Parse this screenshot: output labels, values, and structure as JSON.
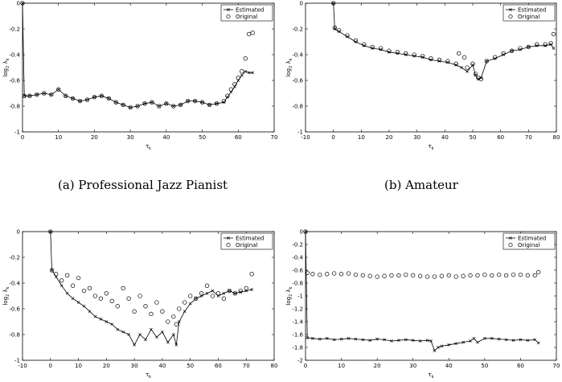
{
  "captions": {
    "a": "(a) Professional Jazz Pianist",
    "b": "(b) Amateur"
  },
  "chart_data": [
    {
      "type": "line",
      "xlabel": "τ_k",
      "ylabel": "log_2 λ_k",
      "xlim": [
        0,
        70
      ],
      "ylim": [
        -1,
        0
      ],
      "xticks": [
        0,
        10,
        20,
        30,
        40,
        50,
        60,
        70
      ],
      "yticks": [
        0,
        -0.2,
        -0.4,
        -0.6,
        -0.8,
        -1
      ],
      "legend": "top-right",
      "series": [
        {
          "name": "Estimated",
          "style": "line-x",
          "x": [
            0,
            0.5,
            2,
            4,
            6,
            8,
            10,
            12,
            14,
            16,
            18,
            20,
            22,
            24,
            26,
            28,
            30,
            32,
            34,
            36,
            38,
            40,
            42,
            44,
            46,
            48,
            50,
            52,
            54,
            56,
            57,
            58,
            59,
            60,
            61,
            62,
            63,
            64
          ],
          "y": [
            0,
            -0.72,
            -0.72,
            -0.71,
            -0.7,
            -0.71,
            -0.67,
            -0.72,
            -0.74,
            -0.76,
            -0.75,
            -0.73,
            -0.72,
            -0.74,
            -0.77,
            -0.79,
            -0.81,
            -0.8,
            -0.78,
            -0.77,
            -0.8,
            -0.78,
            -0.8,
            -0.79,
            -0.76,
            -0.76,
            -0.77,
            -0.79,
            -0.78,
            -0.77,
            -0.73,
            -0.69,
            -0.65,
            -0.6,
            -0.56,
            -0.53,
            -0.54,
            -0.54
          ]
        },
        {
          "name": "Original",
          "style": "circle",
          "x": [
            0,
            0.5,
            2,
            4,
            6,
            8,
            10,
            12,
            14,
            16,
            18,
            20,
            22,
            24,
            26,
            28,
            30,
            32,
            34,
            36,
            38,
            40,
            42,
            44,
            46,
            48,
            50,
            52,
            54,
            56,
            57,
            58,
            59,
            60,
            61,
            62,
            63,
            64
          ],
          "y": [
            0,
            -0.72,
            -0.72,
            -0.71,
            -0.7,
            -0.71,
            -0.67,
            -0.72,
            -0.74,
            -0.76,
            -0.75,
            -0.73,
            -0.72,
            -0.74,
            -0.77,
            -0.79,
            -0.81,
            -0.8,
            -0.78,
            -0.77,
            -0.8,
            -0.78,
            -0.8,
            -0.79,
            -0.76,
            -0.76,
            -0.77,
            -0.79,
            -0.78,
            -0.76,
            -0.72,
            -0.67,
            -0.63,
            -0.58,
            -0.53,
            -0.43,
            -0.24,
            -0.23
          ]
        }
      ]
    },
    {
      "type": "line",
      "xlabel": "τ_k",
      "ylabel": "log_2 λ_k",
      "xlim": [
        -10,
        80
      ],
      "ylim": [
        -1,
        0
      ],
      "xticks": [
        -10,
        0,
        10,
        20,
        30,
        40,
        50,
        60,
        70,
        80
      ],
      "yticks": [
        0,
        -0.2,
        -0.4,
        -0.6,
        -0.8,
        -1
      ],
      "legend": "top-right",
      "series": [
        {
          "name": "Estimated",
          "style": "line-x",
          "x": [
            0,
            0.5,
            2,
            5,
            8,
            11,
            14,
            17,
            20,
            23,
            26,
            29,
            32,
            35,
            38,
            41,
            44,
            46,
            48,
            50,
            51,
            52,
            53,
            55,
            58,
            61,
            64,
            67,
            70,
            73,
            76,
            78,
            79
          ],
          "y": [
            0,
            -0.2,
            -0.22,
            -0.26,
            -0.3,
            -0.33,
            -0.35,
            -0.36,
            -0.38,
            -0.39,
            -0.4,
            -0.41,
            -0.42,
            -0.44,
            -0.45,
            -0.46,
            -0.48,
            -0.5,
            -0.53,
            -0.48,
            -0.56,
            -0.59,
            -0.58,
            -0.45,
            -0.43,
            -0.4,
            -0.37,
            -0.36,
            -0.34,
            -0.33,
            -0.33,
            -0.32,
            -0.35
          ]
        },
        {
          "name": "Original",
          "style": "circle",
          "x": [
            0,
            0.5,
            2,
            5,
            8,
            11,
            14,
            17,
            20,
            23,
            26,
            29,
            32,
            35,
            38,
            41,
            44,
            45,
            47,
            48,
            50,
            51,
            52,
            53,
            55,
            58,
            61,
            64,
            67,
            70,
            73,
            76,
            78,
            79
          ],
          "y": [
            0,
            -0.19,
            -0.21,
            -0.25,
            -0.29,
            -0.32,
            -0.34,
            -0.35,
            -0.37,
            -0.38,
            -0.39,
            -0.4,
            -0.41,
            -0.43,
            -0.44,
            -0.45,
            -0.47,
            -0.39,
            -0.42,
            -0.5,
            -0.47,
            -0.55,
            -0.58,
            -0.59,
            -0.45,
            -0.42,
            -0.39,
            -0.37,
            -0.35,
            -0.34,
            -0.32,
            -0.32,
            -0.31,
            -0.24
          ]
        }
      ]
    },
    {
      "type": "line",
      "xlabel": "τ_k",
      "ylabel": "log_2 λ_k",
      "xlim": [
        -10,
        80
      ],
      "ylim": [
        -1,
        0
      ],
      "xticks": [
        -10,
        0,
        10,
        20,
        30,
        40,
        50,
        60,
        70,
        80
      ],
      "yticks": [
        0,
        -0.2,
        -0.4,
        -0.6,
        -0.8,
        -1
      ],
      "legend": "top-right",
      "series": [
        {
          "name": "Estimated",
          "style": "line-x",
          "x": [
            0,
            0.5,
            2,
            4,
            6,
            8,
            10,
            12,
            14,
            16,
            18,
            20,
            22,
            24,
            26,
            28,
            30,
            32,
            34,
            36,
            38,
            40,
            42,
            44,
            45,
            46,
            48,
            50,
            52,
            54,
            56,
            58,
            60,
            62,
            64,
            66,
            68,
            70,
            72
          ],
          "y": [
            0,
            -0.3,
            -0.35,
            -0.42,
            -0.48,
            -0.52,
            -0.55,
            -0.58,
            -0.62,
            -0.66,
            -0.68,
            -0.7,
            -0.72,
            -0.76,
            -0.78,
            -0.8,
            -0.88,
            -0.8,
            -0.84,
            -0.76,
            -0.82,
            -0.78,
            -0.86,
            -0.8,
            -0.88,
            -0.7,
            -0.62,
            -0.56,
            -0.52,
            -0.5,
            -0.48,
            -0.46,
            -0.5,
            -0.48,
            -0.46,
            -0.48,
            -0.47,
            -0.46,
            -0.45
          ]
        },
        {
          "name": "Original",
          "style": "circle",
          "x": [
            0,
            0.5,
            2,
            4,
            6,
            8,
            10,
            12,
            14,
            16,
            18,
            20,
            22,
            24,
            26,
            28,
            30,
            32,
            34,
            36,
            38,
            40,
            42,
            44,
            45,
            46,
            48,
            50,
            52,
            54,
            56,
            58,
            60,
            62,
            64,
            66,
            68,
            70,
            72
          ],
          "y": [
            0,
            -0.3,
            -0.33,
            -0.38,
            -0.34,
            -0.42,
            -0.36,
            -0.46,
            -0.44,
            -0.5,
            -0.52,
            -0.48,
            -0.54,
            -0.58,
            -0.44,
            -0.52,
            -0.62,
            -0.5,
            -0.58,
            -0.64,
            -0.55,
            -0.62,
            -0.7,
            -0.66,
            -0.72,
            -0.6,
            -0.55,
            -0.5,
            -0.52,
            -0.48,
            -0.42,
            -0.5,
            -0.48,
            -0.52,
            -0.46,
            -0.48,
            -0.46,
            -0.44,
            -0.33
          ]
        }
      ]
    },
    {
      "type": "line",
      "xlabel": "τ_k",
      "ylabel": "log_2 λ_k",
      "xlim": [
        0,
        70
      ],
      "ylim": [
        -2,
        0
      ],
      "xticks": [
        0,
        10,
        20,
        30,
        40,
        50,
        60,
        70
      ],
      "yticks": [
        0,
        -0.2,
        -0.4,
        -0.6,
        -0.8,
        -1,
        -1.2,
        -1.4,
        -1.6,
        -1.8,
        -2
      ],
      "legend": "top-right",
      "series": [
        {
          "name": "Estimated",
          "style": "line-x",
          "x": [
            0,
            0.5,
            2,
            4,
            6,
            8,
            10,
            12,
            14,
            16,
            18,
            20,
            22,
            24,
            26,
            28,
            30,
            32,
            34,
            35,
            36,
            37,
            38,
            40,
            42,
            44,
            46,
            47,
            48,
            50,
            52,
            54,
            56,
            58,
            60,
            62,
            64,
            65
          ],
          "y": [
            0,
            -1.65,
            -1.66,
            -1.67,
            -1.66,
            -1.68,
            -1.67,
            -1.66,
            -1.67,
            -1.68,
            -1.69,
            -1.67,
            -1.68,
            -1.7,
            -1.69,
            -1.68,
            -1.69,
            -1.7,
            -1.69,
            -1.7,
            -1.85,
            -1.8,
            -1.78,
            -1.76,
            -1.74,
            -1.72,
            -1.7,
            -1.66,
            -1.72,
            -1.66,
            -1.66,
            -1.67,
            -1.68,
            -1.69,
            -1.68,
            -1.69,
            -1.68,
            -1.73
          ]
        },
        {
          "name": "Original",
          "style": "circle",
          "x": [
            0,
            0.5,
            2,
            4,
            6,
            8,
            10,
            12,
            14,
            16,
            18,
            20,
            22,
            24,
            26,
            28,
            30,
            32,
            34,
            36,
            38,
            40,
            42,
            44,
            46,
            48,
            50,
            52,
            54,
            56,
            58,
            60,
            62,
            64,
            65
          ],
          "y": [
            0,
            -0.64,
            -0.66,
            -0.67,
            -0.66,
            -0.65,
            -0.66,
            -0.65,
            -0.67,
            -0.68,
            -0.69,
            -0.7,
            -0.69,
            -0.68,
            -0.68,
            -0.67,
            -0.68,
            -0.69,
            -0.7,
            -0.7,
            -0.69,
            -0.68,
            -0.7,
            -0.69,
            -0.68,
            -0.68,
            -0.67,
            -0.68,
            -0.67,
            -0.68,
            -0.67,
            -0.67,
            -0.68,
            -0.68,
            -0.63
          ]
        }
      ]
    }
  ]
}
